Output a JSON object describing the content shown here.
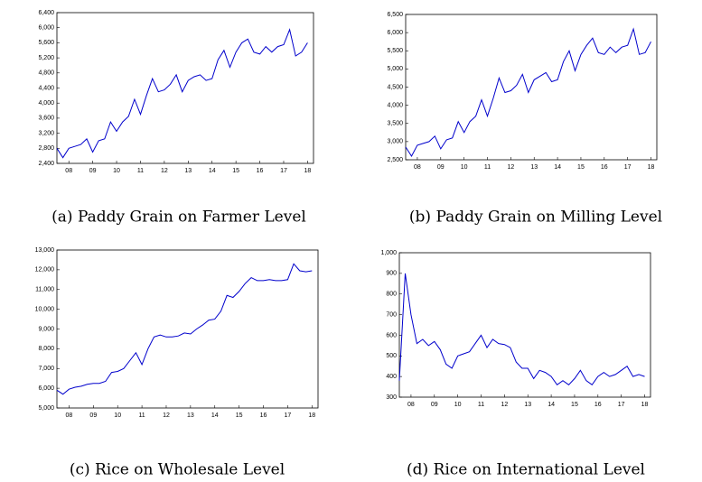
{
  "chart_data": [
    {
      "type": "line",
      "caption": "(a) Paddy Grain on Farmer Level",
      "color": "#0000cc",
      "x": [
        2008,
        2008.25,
        2008.5,
        2008.75,
        2009,
        2009.25,
        2009.5,
        2009.75,
        2010,
        2010.25,
        2010.5,
        2010.75,
        2011,
        2011.25,
        2011.5,
        2011.75,
        2012,
        2012.25,
        2012.5,
        2012.75,
        2013,
        2013.25,
        2013.5,
        2013.75,
        2014,
        2014.25,
        2014.5,
        2014.75,
        2015,
        2015.25,
        2015.5,
        2015.75,
        2016,
        2016.25,
        2016.5,
        2016.75,
        2017,
        2017.25,
        2017.5,
        2017.75,
        2018,
        2018.25,
        2018.5
      ],
      "values": [
        2800,
        2550,
        2800,
        2850,
        2900,
        3050,
        2700,
        3000,
        3050,
        3500,
        3250,
        3500,
        3650,
        4100,
        3700,
        4200,
        4650,
        4300,
        4350,
        4500,
        4750,
        4300,
        4600,
        4700,
        4750,
        4600,
        4650,
        5150,
        5400,
        4950,
        5350,
        5600,
        5700,
        5350,
        5300,
        5500,
        5350,
        5500,
        5550,
        5950,
        5250,
        5350,
        5600
      ],
      "xlim": [
        2008,
        2018.75
      ],
      "xticks": [
        {
          "value": 2008.5,
          "label": "08"
        },
        {
          "value": 2009.5,
          "label": "09"
        },
        {
          "value": 2010.5,
          "label": "10"
        },
        {
          "value": 2011.5,
          "label": "11"
        },
        {
          "value": 2012.5,
          "label": "12"
        },
        {
          "value": 2013.5,
          "label": "13"
        },
        {
          "value": 2014.5,
          "label": "14"
        },
        {
          "value": 2015.5,
          "label": "15"
        },
        {
          "value": 2016.5,
          "label": "16"
        },
        {
          "value": 2017.5,
          "label": "17"
        },
        {
          "value": 2018.5,
          "label": "18"
        }
      ],
      "ylim": [
        2400,
        6400
      ],
      "yticks": [
        {
          "value": 2400,
          "label": "2,400"
        },
        {
          "value": 2800,
          "label": "2,800"
        },
        {
          "value": 3200,
          "label": "3,200"
        },
        {
          "value": 3600,
          "label": "3,600"
        },
        {
          "value": 4000,
          "label": "4,000"
        },
        {
          "value": 4400,
          "label": "4,400"
        },
        {
          "value": 4800,
          "label": "4,800"
        },
        {
          "value": 5200,
          "label": "5,200"
        },
        {
          "value": 5600,
          "label": "5,600"
        },
        {
          "value": 6000,
          "label": "6,000"
        },
        {
          "value": 6400,
          "label": "6,400"
        }
      ]
    },
    {
      "type": "line",
      "caption": "(b) Paddy Grain on Milling Level",
      "color": "#0000cc",
      "x": [
        2008,
        2008.25,
        2008.5,
        2008.75,
        2009,
        2009.25,
        2009.5,
        2009.75,
        2010,
        2010.25,
        2010.5,
        2010.75,
        2011,
        2011.25,
        2011.5,
        2011.75,
        2012,
        2012.25,
        2012.5,
        2012.75,
        2013,
        2013.25,
        2013.5,
        2013.75,
        2014,
        2014.25,
        2014.5,
        2014.75,
        2015,
        2015.25,
        2015.5,
        2015.75,
        2016,
        2016.25,
        2016.5,
        2016.75,
        2017,
        2017.25,
        2017.5,
        2017.75,
        2018,
        2018.25,
        2018.5
      ],
      "values": [
        2850,
        2600,
        2900,
        2950,
        3000,
        3150,
        2800,
        3050,
        3100,
        3550,
        3250,
        3550,
        3700,
        4150,
        3700,
        4200,
        4750,
        4350,
        4400,
        4550,
        4850,
        4350,
        4700,
        4800,
        4900,
        4650,
        4700,
        5200,
        5500,
        4950,
        5400,
        5650,
        5850,
        5450,
        5400,
        5600,
        5450,
        5600,
        5650,
        6100,
        5400,
        5450,
        5750
      ],
      "xlim": [
        2008,
        2018.75
      ],
      "xticks": [
        {
          "value": 2008.5,
          "label": "08"
        },
        {
          "value": 2009.5,
          "label": "09"
        },
        {
          "value": 2010.5,
          "label": "10"
        },
        {
          "value": 2011.5,
          "label": "11"
        },
        {
          "value": 2012.5,
          "label": "12"
        },
        {
          "value": 2013.5,
          "label": "13"
        },
        {
          "value": 2014.5,
          "label": "14"
        },
        {
          "value": 2015.5,
          "label": "15"
        },
        {
          "value": 2016.5,
          "label": "16"
        },
        {
          "value": 2017.5,
          "label": "17"
        },
        {
          "value": 2018.5,
          "label": "18"
        }
      ],
      "ylim": [
        2500,
        6500
      ],
      "yticks": [
        {
          "value": 2500,
          "label": "2,500"
        },
        {
          "value": 3000,
          "label": "3,000"
        },
        {
          "value": 3500,
          "label": "3,500"
        },
        {
          "value": 4000,
          "label": "4,000"
        },
        {
          "value": 4500,
          "label": "4,500"
        },
        {
          "value": 5000,
          "label": "5,000"
        },
        {
          "value": 5500,
          "label": "5,500"
        },
        {
          "value": 6000,
          "label": "6,000"
        },
        {
          "value": 6500,
          "label": "6,500"
        }
      ]
    },
    {
      "type": "line",
      "caption": "(c) Rice on Wholesale Level",
      "color": "#0000cc",
      "x": [
        2008,
        2008.25,
        2008.5,
        2008.75,
        2009,
        2009.25,
        2009.5,
        2009.75,
        2010,
        2010.25,
        2010.5,
        2010.75,
        2011,
        2011.25,
        2011.5,
        2011.75,
        2012,
        2012.25,
        2012.5,
        2012.75,
        2013,
        2013.25,
        2013.5,
        2013.75,
        2014,
        2014.25,
        2014.5,
        2014.75,
        2015,
        2015.25,
        2015.5,
        2015.75,
        2016,
        2016.25,
        2016.5,
        2016.75,
        2017,
        2017.25,
        2017.5,
        2017.75,
        2018,
        2018.25,
        2018.5
      ],
      "values": [
        5900,
        5700,
        5950,
        6050,
        6100,
        6200,
        6250,
        6250,
        6350,
        6800,
        6850,
        7000,
        7400,
        7800,
        7200,
        8000,
        8600,
        8700,
        8600,
        8600,
        8650,
        8800,
        8750,
        9000,
        9200,
        9450,
        9500,
        9900,
        10700,
        10600,
        10900,
        11300,
        11600,
        11450,
        11450,
        11500,
        11450,
        11450,
        11500,
        12300,
        11950,
        11900,
        11950
      ],
      "xlim": [
        2008,
        2018.75
      ],
      "xticks": [
        {
          "value": 2008.5,
          "label": "08"
        },
        {
          "value": 2009.5,
          "label": "09"
        },
        {
          "value": 2010.5,
          "label": "10"
        },
        {
          "value": 2011.5,
          "label": "11"
        },
        {
          "value": 2012.5,
          "label": "12"
        },
        {
          "value": 2013.5,
          "label": "13"
        },
        {
          "value": 2014.5,
          "label": "14"
        },
        {
          "value": 2015.5,
          "label": "15"
        },
        {
          "value": 2016.5,
          "label": "16"
        },
        {
          "value": 2017.5,
          "label": "17"
        },
        {
          "value": 2018.5,
          "label": "18"
        }
      ],
      "ylim": [
        5000,
        13000
      ],
      "yticks": [
        {
          "value": 5000,
          "label": "5,000"
        },
        {
          "value": 6000,
          "label": "6,000"
        },
        {
          "value": 7000,
          "label": "7,000"
        },
        {
          "value": 8000,
          "label": "8,000"
        },
        {
          "value": 9000,
          "label": "9,000"
        },
        {
          "value": 10000,
          "label": "10,000"
        },
        {
          "value": 11000,
          "label": "11,000"
        },
        {
          "value": 12000,
          "label": "12,000"
        },
        {
          "value": 13000,
          "label": "13,000"
        }
      ]
    },
    {
      "type": "line",
      "caption": "(d) Rice on International Level",
      "color": "#0000cc",
      "x": [
        2008,
        2008.25,
        2008.5,
        2008.75,
        2009,
        2009.25,
        2009.5,
        2009.75,
        2010,
        2010.25,
        2010.5,
        2010.75,
        2011,
        2011.25,
        2011.5,
        2011.75,
        2012,
        2012.25,
        2012.5,
        2012.75,
        2013,
        2013.25,
        2013.5,
        2013.75,
        2014,
        2014.25,
        2014.5,
        2014.75,
        2015,
        2015.25,
        2015.5,
        2015.75,
        2016,
        2016.25,
        2016.5,
        2016.75,
        2017,
        2017.25,
        2017.5,
        2017.75,
        2018,
        2018.25,
        2018.5
      ],
      "values": [
        380,
        900,
        700,
        560,
        580,
        550,
        570,
        530,
        460,
        440,
        500,
        510,
        520,
        560,
        600,
        540,
        580,
        560,
        555,
        540,
        470,
        440,
        440,
        390,
        430,
        420,
        400,
        360,
        380,
        360,
        390,
        430,
        380,
        360,
        400,
        420,
        400,
        410,
        430,
        450,
        400,
        410,
        400
      ],
      "xlim": [
        2008,
        2018.75
      ],
      "xticks": [
        {
          "value": 2008.5,
          "label": "08"
        },
        {
          "value": 2009.5,
          "label": "09"
        },
        {
          "value": 2010.5,
          "label": "10"
        },
        {
          "value": 2011.5,
          "label": "11"
        },
        {
          "value": 2012.5,
          "label": "12"
        },
        {
          "value": 2013.5,
          "label": "13"
        },
        {
          "value": 2014.5,
          "label": "14"
        },
        {
          "value": 2015.5,
          "label": "15"
        },
        {
          "value": 2016.5,
          "label": "16"
        },
        {
          "value": 2017.5,
          "label": "17"
        },
        {
          "value": 2018.5,
          "label": "18"
        }
      ],
      "ylim": [
        300,
        1000
      ],
      "yticks": [
        300,
        400,
        500,
        600,
        700,
        800,
        900,
        {
          "value": 1000,
          "label": "1,000"
        }
      ]
    }
  ]
}
